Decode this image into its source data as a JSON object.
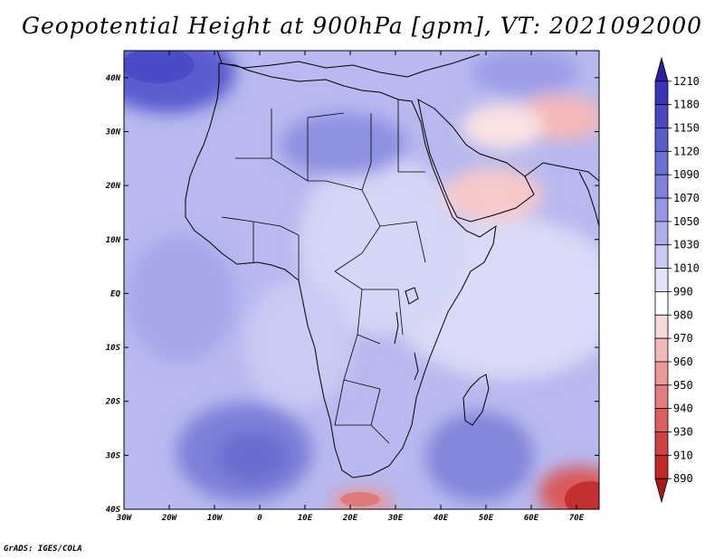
{
  "title": "Geopotential Height at 900hPa [gpm], VT: 2021092000",
  "footer": "GrADS: IGES/COLA",
  "map": {
    "region": "Africa",
    "lon_range": [
      -30,
      75
    ],
    "lat_range": [
      -40,
      45
    ],
    "lat_ticks": [
      "40N",
      "30N",
      "20N",
      "10N",
      "EQ",
      "10S",
      "20S",
      "30S",
      "40S"
    ],
    "lon_ticks": [
      "30W",
      "20W",
      "10W",
      "0",
      "10E",
      "20E",
      "30E",
      "40E",
      "50E",
      "60E",
      "70E"
    ]
  },
  "colorbar": {
    "labels": [
      "1210",
      "1180",
      "1150",
      "1120",
      "1090",
      "1070",
      "1050",
      "1030",
      "1010",
      "990",
      "980",
      "970",
      "960",
      "950",
      "940",
      "930",
      "910",
      "890"
    ],
    "colors": [
      "#2a1fa0",
      "#3a35b8",
      "#4a48c4",
      "#5a5ccc",
      "#6c6fd4",
      "#7f82dc",
      "#9497e4",
      "#adb0ec",
      "#c8caf3",
      "#e3e4fa",
      "#ffffff",
      "#f8d8d8",
      "#f2b8b8",
      "#eb9a9a",
      "#e47c7c",
      "#dc5e5e",
      "#d14242",
      "#c02a2a",
      "#a81818"
    ]
  }
}
